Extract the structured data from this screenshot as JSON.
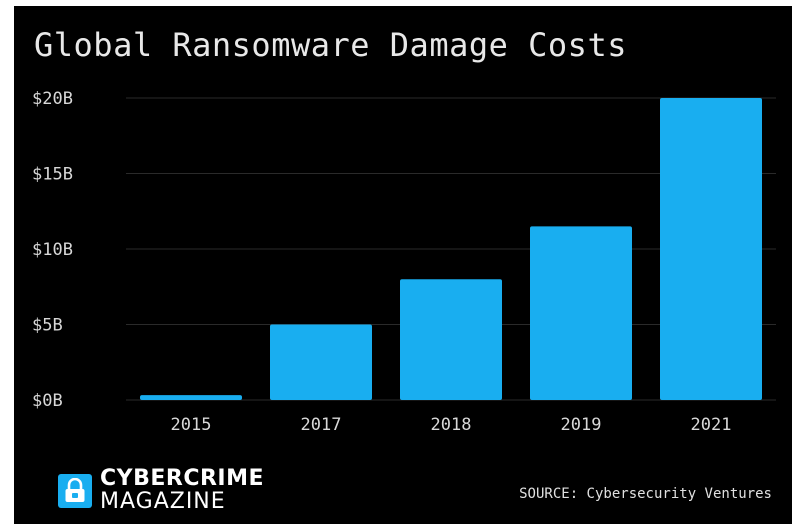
{
  "chart_data": {
    "type": "bar",
    "title": "Global Ransomware Damage Costs",
    "categories": [
      "2015",
      "2017",
      "2018",
      "2019",
      "2021"
    ],
    "values": [
      0.325,
      5,
      8,
      11.5,
      20
    ],
    "unit": "billion USD",
    "ylim": [
      0,
      20
    ],
    "yticks": [
      0,
      5,
      10,
      15,
      20
    ],
    "ytick_labels": [
      "$0B",
      "$5B",
      "$10B",
      "$15B",
      "$20B"
    ],
    "xlabel": "",
    "ylabel": "",
    "grid": true,
    "bar_color": "#19aef0",
    "background": "#000000"
  },
  "brand": {
    "line1": "CYBERCRIME",
    "line2": "MAGAZINE",
    "logo_icon": "padlock-icon",
    "color": "#19aef0"
  },
  "source": "SOURCE: Cybersecurity Ventures"
}
